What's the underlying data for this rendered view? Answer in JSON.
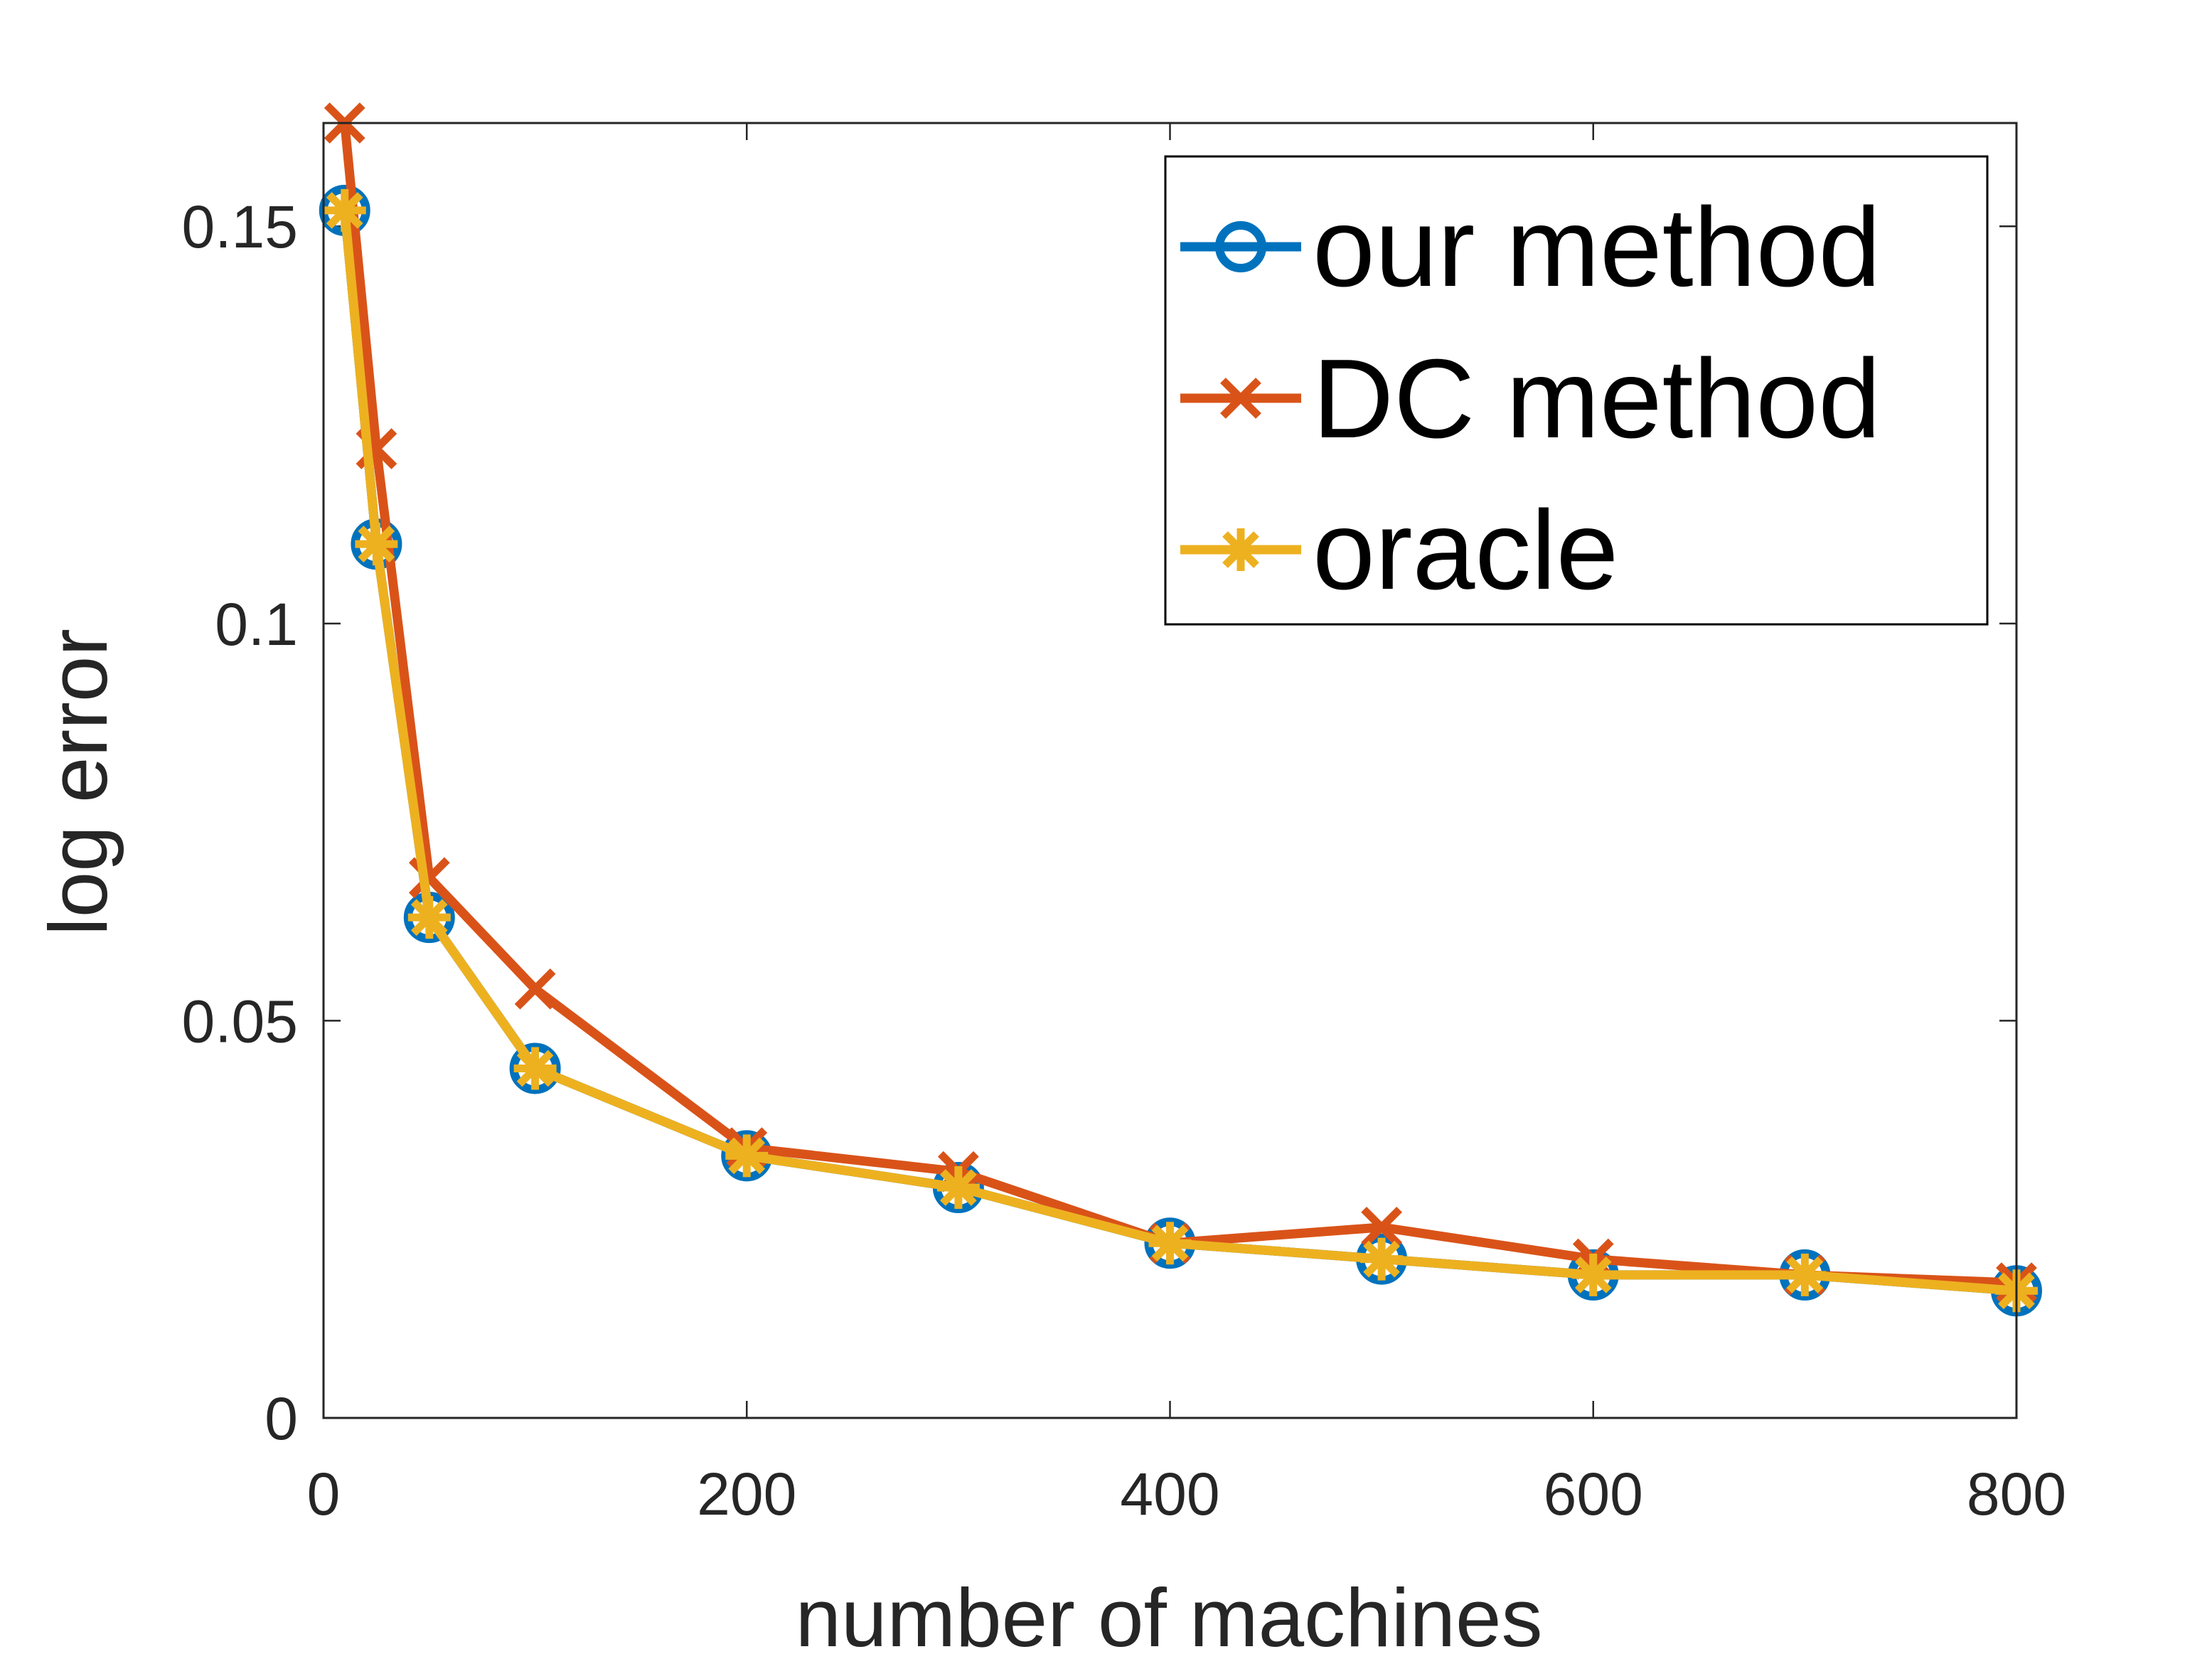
{
  "colors": {
    "background": "#ffffff",
    "axis": "#262626",
    "our_method": "#0072BD",
    "dc_method": "#D95319",
    "oracle": "#EDB120"
  },
  "chart_data": {
    "type": "line",
    "title": "",
    "xlabel": "number of machines",
    "ylabel": "log error",
    "xlim": [
      0,
      800
    ],
    "ylim": [
      0,
      0.163
    ],
    "xticks": [
      0,
      200,
      400,
      600,
      800
    ],
    "xtick_labels": [
      "0",
      "200",
      "400",
      "600",
      "800"
    ],
    "yticks": [
      0,
      0.05,
      0.1,
      0.15
    ],
    "ytick_labels": [
      "0",
      "0.05",
      "0.1",
      "0.15"
    ],
    "grid": false,
    "legend_position": "top-right",
    "x": [
      10,
      25,
      50,
      100,
      200,
      300,
      400,
      500,
      600,
      700,
      800
    ],
    "series": [
      {
        "name": "our method",
        "marker": "circle",
        "color": "#0072BD",
        "values": [
          0.152,
          0.11,
          0.063,
          0.044,
          0.033,
          0.029,
          0.022,
          0.02,
          0.018,
          0.018,
          0.016
        ]
      },
      {
        "name": "DC method",
        "marker": "x",
        "color": "#D95319",
        "values": [
          0.163,
          0.122,
          0.068,
          0.054,
          0.034,
          0.031,
          0.022,
          0.024,
          0.02,
          0.018,
          0.017
        ]
      },
      {
        "name": "oracle",
        "marker": "asterisk",
        "color": "#EDB120",
        "values": [
          0.152,
          0.11,
          0.063,
          0.044,
          0.033,
          0.029,
          0.022,
          0.02,
          0.018,
          0.018,
          0.016
        ]
      }
    ]
  }
}
